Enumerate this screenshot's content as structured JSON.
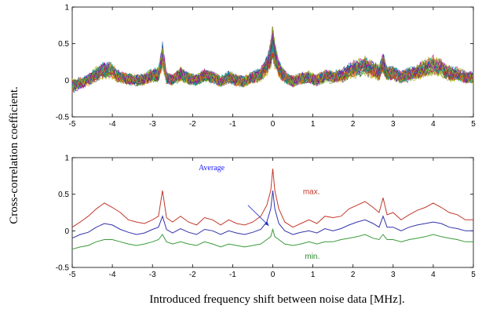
{
  "figure": {
    "ylabel": "Cross-correlation coefficient.",
    "xlabel": "Introduced frequency shift between noise data [MHz]."
  },
  "chart_data": [
    {
      "type": "line",
      "xlim": [
        -5,
        5
      ],
      "ylim": [
        -0.5,
        1
      ],
      "xticks": [
        "-5",
        "-4",
        "-3",
        "-2",
        "-1",
        "0",
        "1",
        "2",
        "3",
        "4",
        "5"
      ],
      "yticks": [
        "-0.5",
        "0",
        "0.5",
        "1"
      ],
      "grid": false,
      "annotations": [],
      "base_profile": {
        "x": [
          -5,
          -4.8,
          -4.6,
          -4.4,
          -4.2,
          -4.0,
          -3.8,
          -3.6,
          -3.4,
          -3.2,
          -3.0,
          -2.85,
          -2.75,
          -2.65,
          -2.5,
          -2.3,
          -2.1,
          -1.9,
          -1.7,
          -1.5,
          -1.3,
          -1.1,
          -0.9,
          -0.7,
          -0.5,
          -0.3,
          -0.15,
          -0.05,
          0,
          0.05,
          0.15,
          0.3,
          0.5,
          0.7,
          0.9,
          1.1,
          1.3,
          1.5,
          1.7,
          1.9,
          2.1,
          2.3,
          2.5,
          2.65,
          2.75,
          2.85,
          3.0,
          3.2,
          3.4,
          3.6,
          3.8,
          4.0,
          4.2,
          4.4,
          4.6,
          4.8,
          5
        ],
        "y": [
          -0.1,
          -0.05,
          0.0,
          0.1,
          0.18,
          0.15,
          0.05,
          0.02,
          0.0,
          0.02,
          0.08,
          0.1,
          0.42,
          0.05,
          0.0,
          0.1,
          0.03,
          0.0,
          0.08,
          0.05,
          -0.02,
          0.05,
          0.0,
          -0.02,
          0.05,
          0.1,
          0.25,
          0.45,
          0.65,
          0.45,
          0.2,
          0.05,
          -0.02,
          0.03,
          0.05,
          0.0,
          0.08,
          0.05,
          0.08,
          0.15,
          0.2,
          0.25,
          0.18,
          0.12,
          0.3,
          0.1,
          0.12,
          0.05,
          0.1,
          0.15,
          0.2,
          0.25,
          0.2,
          0.12,
          0.1,
          0.05,
          0.05
        ]
      },
      "series_count": 30,
      "colors": [
        "#1f3fbf",
        "#2ca02c",
        "#d62728",
        "#00a0a0",
        "#b000b0",
        "#b8b000",
        "#404040",
        "#ff7f0e"
      ]
    },
    {
      "type": "line",
      "xlim": [
        -5,
        5
      ],
      "ylim": [
        -0.5,
        1
      ],
      "xticks": [
        "-5",
        "-4",
        "-3",
        "-2",
        "-1",
        "0",
        "1",
        "2",
        "3",
        "4",
        "5"
      ],
      "yticks": [
        "-0.5",
        "0",
        "0.5",
        "1"
      ],
      "grid": false,
      "x": [
        -5,
        -4.8,
        -4.6,
        -4.4,
        -4.2,
        -4.0,
        -3.8,
        -3.6,
        -3.4,
        -3.2,
        -3.0,
        -2.85,
        -2.75,
        -2.65,
        -2.5,
        -2.3,
        -2.1,
        -1.9,
        -1.7,
        -1.5,
        -1.3,
        -1.1,
        -0.9,
        -0.7,
        -0.5,
        -0.3,
        -0.15,
        -0.05,
        0,
        0.05,
        0.15,
        0.3,
        0.5,
        0.7,
        0.9,
        1.1,
        1.3,
        1.5,
        1.7,
        1.9,
        2.1,
        2.3,
        2.5,
        2.65,
        2.75,
        2.85,
        3.0,
        3.2,
        3.4,
        3.6,
        3.8,
        4.0,
        4.2,
        4.4,
        4.6,
        4.8,
        5
      ],
      "series": [
        {
          "name": "max.",
          "color": "#c0392b",
          "values": [
            0.05,
            0.12,
            0.2,
            0.3,
            0.38,
            0.32,
            0.25,
            0.15,
            0.12,
            0.1,
            0.15,
            0.2,
            0.55,
            0.18,
            0.12,
            0.2,
            0.12,
            0.08,
            0.18,
            0.15,
            0.08,
            0.15,
            0.1,
            0.08,
            0.12,
            0.2,
            0.35,
            0.55,
            0.85,
            0.55,
            0.3,
            0.12,
            0.05,
            0.1,
            0.15,
            0.1,
            0.2,
            0.18,
            0.2,
            0.3,
            0.35,
            0.4,
            0.32,
            0.25,
            0.45,
            0.22,
            0.25,
            0.15,
            0.22,
            0.28,
            0.32,
            0.38,
            0.32,
            0.25,
            0.22,
            0.15,
            0.15
          ]
        },
        {
          "name": "Average",
          "color": "#3333aa",
          "values": [
            -0.1,
            -0.05,
            -0.02,
            0.05,
            0.1,
            0.08,
            0.02,
            -0.02,
            -0.05,
            -0.03,
            0.02,
            0.05,
            0.2,
            0.02,
            -0.03,
            0.03,
            -0.02,
            -0.05,
            0.02,
            0.0,
            -0.05,
            0.0,
            -0.03,
            -0.05,
            -0.02,
            0.02,
            0.12,
            0.3,
            0.55,
            0.3,
            0.1,
            0.0,
            -0.05,
            -0.02,
            0.0,
            -0.03,
            0.03,
            0.0,
            0.03,
            0.08,
            0.12,
            0.15,
            0.1,
            0.05,
            0.2,
            0.05,
            0.05,
            0.0,
            0.05,
            0.08,
            0.1,
            0.12,
            0.1,
            0.05,
            0.03,
            0.0,
            0.0
          ]
        },
        {
          "name": "min.",
          "color": "#3a9a3a",
          "values": [
            -0.25,
            -0.22,
            -0.2,
            -0.15,
            -0.12,
            -0.12,
            -0.15,
            -0.18,
            -0.2,
            -0.18,
            -0.15,
            -0.12,
            -0.05,
            -0.15,
            -0.18,
            -0.15,
            -0.18,
            -0.2,
            -0.15,
            -0.18,
            -0.22,
            -0.18,
            -0.2,
            -0.22,
            -0.2,
            -0.18,
            -0.12,
            -0.08,
            0.02,
            -0.08,
            -0.12,
            -0.18,
            -0.2,
            -0.18,
            -0.15,
            -0.18,
            -0.15,
            -0.15,
            -0.12,
            -0.1,
            -0.08,
            -0.05,
            -0.1,
            -0.12,
            -0.05,
            -0.12,
            -0.12,
            -0.15,
            -0.12,
            -0.1,
            -0.08,
            -0.05,
            -0.08,
            -0.1,
            -0.12,
            -0.15,
            -0.15
          ]
        }
      ],
      "annotations": [
        {
          "text": "Average",
          "color": "#1a1aff",
          "x": -1.85,
          "y": 0.83,
          "arrow_to": [
            -0.1,
            0.07
          ],
          "arrow_from": [
            -0.62,
            0.35
          ]
        },
        {
          "text": "max.",
          "color": "#c0392b",
          "x": 0.75,
          "y": 0.5
        },
        {
          "text": "min.",
          "color": "#2a8a2a",
          "x": 0.8,
          "y": -0.38
        }
      ]
    }
  ]
}
